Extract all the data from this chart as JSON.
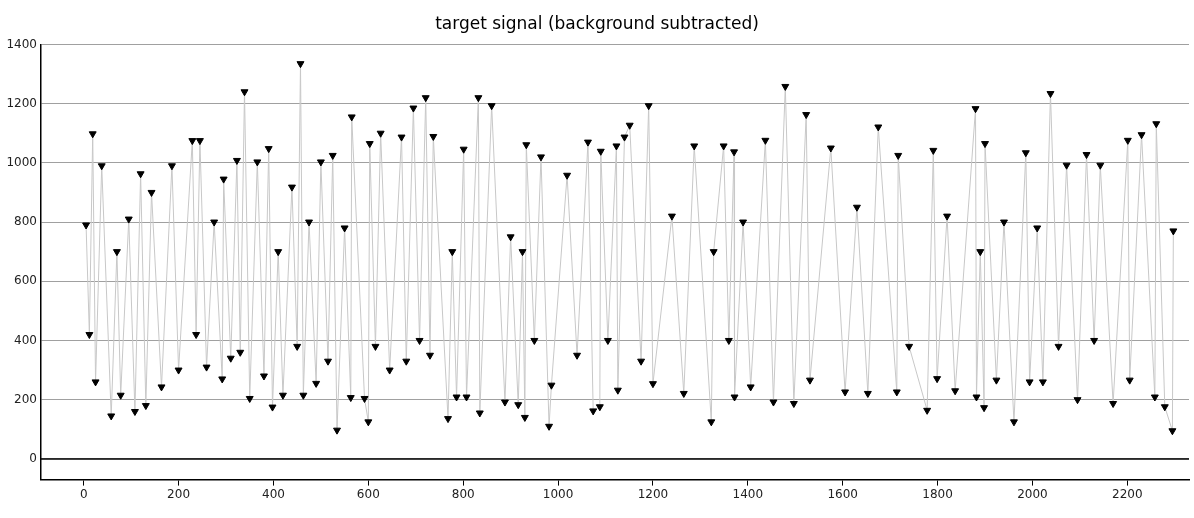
{
  "chart_data": {
    "type": "line",
    "title": "target signal (background subtracted)",
    "xlim": [
      -90,
      2330
    ],
    "xticks": [
      0,
      200,
      400,
      600,
      800,
      1000,
      1200,
      1400,
      1600,
      1800,
      2000,
      2200
    ],
    "ylim": [
      -70,
      1400
    ],
    "yticks": [
      0,
      200,
      400,
      600,
      800,
      1000,
      1200,
      1400
    ],
    "grid": "y",
    "marker": "triangle",
    "ref_lines": [
      {
        "axis": "y",
        "value": 0,
        "color": "#000000"
      }
    ],
    "series": [
      {
        "color": "#000000",
        "x": [
          5,
          12,
          19,
          25,
          38,
          58,
          70,
          78,
          95,
          108,
          120,
          131,
          143,
          164,
          186,
          200,
          229,
          237,
          245,
          259,
          275,
          292,
          295,
          310,
          323,
          330,
          339,
          350,
          366,
          380,
          390,
          398,
          410,
          420,
          439,
          450,
          457,
          463,
          475,
          490,
          500,
          515,
          525,
          534,
          550,
          563,
          565,
          592,
          600,
          603,
          615,
          626,
          645,
          670,
          680,
          695,
          708,
          721,
          730,
          737,
          768,
          777,
          786,
          801,
          807,
          832,
          835,
          860,
          888,
          900,
          916,
          925,
          930,
          933,
          950,
          964,
          981,
          986,
          1019,
          1040,
          1063,
          1074,
          1088,
          1090,
          1105,
          1123,
          1126,
          1140,
          1151,
          1175,
          1191,
          1200,
          1240,
          1265,
          1287,
          1323,
          1328,
          1349,
          1360,
          1371,
          1372,
          1390,
          1406,
          1437,
          1454,
          1479,
          1497,
          1523,
          1531,
          1575,
          1605,
          1630,
          1653,
          1675,
          1714,
          1717,
          1740,
          1778,
          1791,
          1799,
          1820,
          1837,
          1880,
          1882,
          1890,
          1898,
          1900,
          1924,
          1940,
          1961,
          1986,
          1994,
          2010,
          2022,
          2038,
          2055,
          2072,
          2095,
          2114,
          2130,
          2143,
          2170,
          2201,
          2205,
          2230,
          2258,
          2261,
          2279,
          2295,
          2297
        ],
        "values": [
          790,
          420,
          1098,
          260,
          990,
          145,
          700,
          215,
          810,
          160,
          963,
          180,
          900,
          243,
          990,
          300,
          1075,
          420,
          1075,
          310,
          800,
          270,
          945,
          340,
          1008,
          360,
          1240,
          204,
          1003,
          280,
          1048,
          175,
          700,
          215,
          918,
          380,
          1335,
          215,
          800,
          255,
          1003,
          330,
          1025,
          97,
          780,
          207,
          1155,
          204,
          125,
          1065,
          380,
          1100,
          300,
          1087,
          330,
          1185,
          400,
          1220,
          350,
          1089,
          136,
          700,
          209,
          1046,
          209,
          1220,
          155,
          1193,
          192,
          750,
          183,
          700,
          140,
          1061,
          400,
          1020,
          110,
          249,
          958,
          350,
          1070,
          162,
          176,
          1039,
          400,
          1057,
          232,
          1087,
          1127,
          330,
          1193,
          254,
          820,
          221,
          1057,
          125,
          700,
          1057,
          400,
          1037,
          209,
          800,
          243,
          1076,
          192,
          1258,
          187,
          1163,
          266,
          1050,
          226,
          850,
          221,
          1121,
          226,
          1025,
          380,
          164,
          1042,
          271,
          820,
          230,
          1183,
          209,
          700,
          173,
          1065,
          266,
          800,
          125,
          1034,
          260,
          780,
          260,
          1234,
          380,
          992,
          200,
          1028,
          400,
          992,
          187,
          1076,
          266,
          1095,
          209,
          1132,
          176,
          95,
          770
        ]
      }
    ]
  }
}
